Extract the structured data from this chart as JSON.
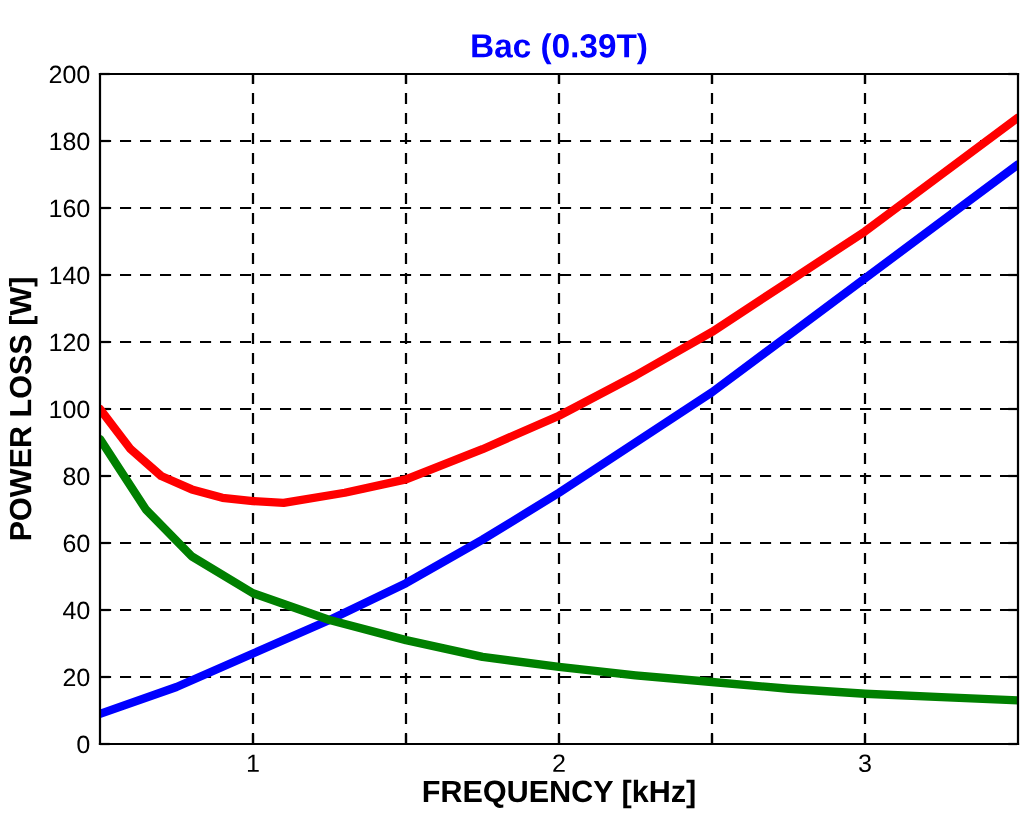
{
  "chart_data": {
    "type": "line",
    "title": "Bac (0.39T)",
    "xlabel": "FREQUENCY [kHz]",
    "ylabel": "POWER LOSS [W]",
    "xlim": [
      0.5,
      3.5
    ],
    "xticks": [
      {
        "value": 1,
        "label": "1"
      },
      {
        "value": 1.5,
        "label": null
      },
      {
        "value": 2,
        "label": "2"
      },
      {
        "value": 2.5,
        "label": null
      },
      {
        "value": 3,
        "label": "3"
      }
    ],
    "ylim": [
      0,
      200
    ],
    "yticks": [
      0,
      20,
      40,
      60,
      80,
      100,
      120,
      140,
      160,
      180,
      200
    ],
    "grid": true,
    "line_style": "solid",
    "marker": "none",
    "series": [
      {
        "color": "#0000ff",
        "x": [
          0.5,
          0.75,
          1,
          1.25,
          1.5,
          1.75,
          2,
          2.25,
          2.5,
          2.75,
          3,
          3.25,
          3.5
        ],
        "values": [
          9,
          17,
          27,
          37,
          48,
          61,
          75,
          90,
          105,
          122,
          139,
          156,
          173
        ]
      },
      {
        "color": "#ff0000",
        "x": [
          0.5,
          0.6,
          0.7,
          0.8,
          0.9,
          1,
          1.1,
          1.3,
          1.5,
          1.75,
          2,
          2.25,
          2.5,
          2.75,
          3,
          3.25,
          3.5
        ],
        "values": [
          100,
          88,
          80,
          76,
          73.5,
          72.5,
          72,
          75,
          79,
          88,
          98,
          110,
          123,
          138,
          153,
          170,
          187
        ]
      },
      {
        "color": "#008000",
        "x": [
          0.5,
          0.65,
          0.8,
          1,
          1.25,
          1.5,
          1.75,
          2,
          2.25,
          2.5,
          2.75,
          3,
          3.25,
          3.5
        ],
        "values": [
          91,
          70,
          56,
          45,
          37,
          31,
          26,
          23,
          20.5,
          18.5,
          16.5,
          15,
          14,
          13
        ]
      }
    ]
  }
}
